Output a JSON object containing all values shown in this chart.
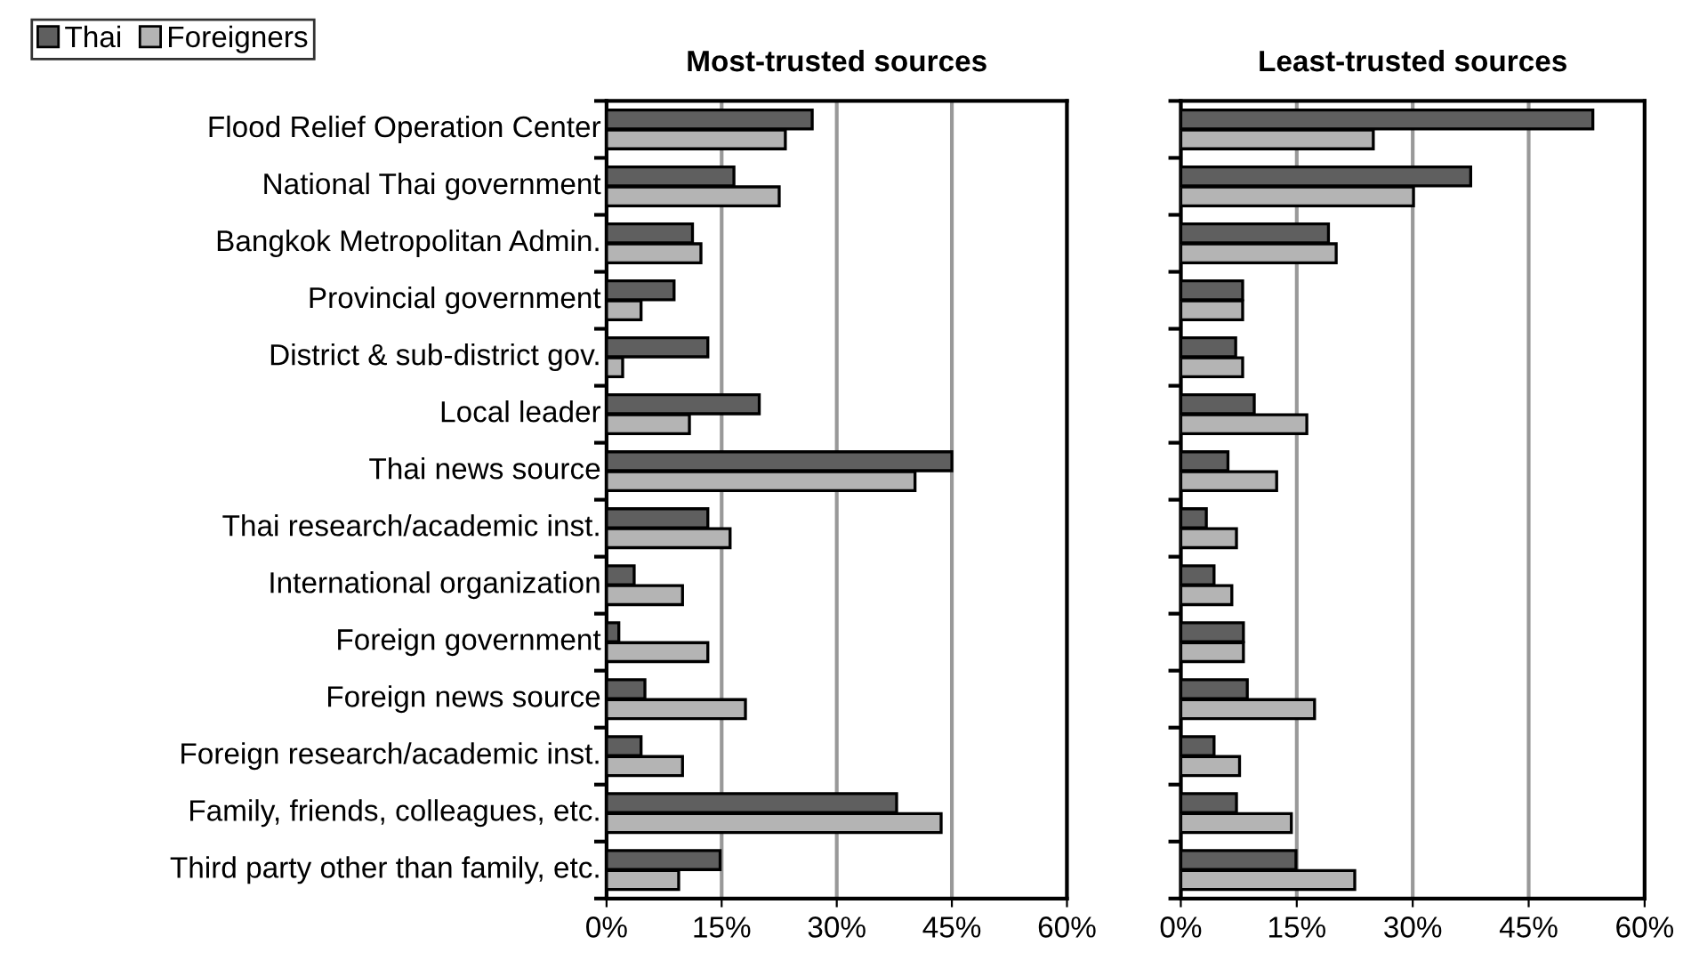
{
  "chart_data": [
    {
      "type": "bar",
      "orientation": "horizontal",
      "title": "Most-trusted sources",
      "categories": [
        "Flood Relief Operation Center",
        "National Thai government",
        "Bangkok Metropolitan Admin.",
        "Provincial government",
        "District & sub-district gov.",
        "Local leader",
        "Thai news source",
        "Thai research/academic inst.",
        "International organization",
        "Foreign government",
        "Foreign news source",
        "Foreign research/academic inst.",
        "Family, friends, colleagues, etc.",
        "Third party other than family, etc."
      ],
      "series": [
        {
          "name": "Thai",
          "color": "#5f5f5f",
          "values": [
            26.8,
            16.6,
            11.2,
            8.8,
            13.2,
            19.9,
            45.0,
            13.2,
            3.6,
            1.6,
            5.0,
            4.5,
            37.8,
            14.8
          ]
        },
        {
          "name": "Foreigners",
          "color": "#b4b4b4",
          "values": [
            23.3,
            22.5,
            12.3,
            4.5,
            2.1,
            10.8,
            40.2,
            16.1,
            9.9,
            13.2,
            18.1,
            9.9,
            43.6,
            9.4
          ]
        }
      ],
      "xlim": [
        0,
        60
      ],
      "xticks": [
        {
          "value": 0,
          "label": "0%"
        },
        {
          "value": 15,
          "label": "15%"
        },
        {
          "value": 30,
          "label": "30%"
        },
        {
          "value": 45,
          "label": "45%"
        },
        {
          "value": 60,
          "label": "60%"
        }
      ],
      "grid": "x",
      "legend": "top left"
    },
    {
      "type": "bar",
      "orientation": "horizontal",
      "title": "Least-trusted sources",
      "categories": [
        null,
        null,
        null,
        null,
        null,
        null,
        null,
        null,
        null,
        null,
        null,
        null,
        null,
        null
      ],
      "series": [
        {
          "color": "#5f5f5f",
          "values": [
            53.3,
            37.5,
            19.1,
            8.0,
            7.1,
            9.5,
            6.1,
            3.3,
            4.3,
            8.1,
            8.6,
            4.3,
            7.2,
            14.9
          ]
        },
        {
          "color": "#b4b4b4",
          "values": [
            24.9,
            30.1,
            20.1,
            8.0,
            8.0,
            16.3,
            12.4,
            7.2,
            6.6,
            8.1,
            17.3,
            7.6,
            14.3,
            22.5
          ]
        }
      ],
      "xlim": [
        0,
        60
      ],
      "xticks": [
        {
          "value": 0,
          "label": "0%"
        },
        {
          "value": 15,
          "label": "15%"
        },
        {
          "value": 30,
          "label": "30%"
        },
        {
          "value": 45,
          "label": "45%"
        },
        {
          "value": 60,
          "label": "60%"
        }
      ],
      "grid": "x",
      "tick_labels": "x"
    }
  ]
}
